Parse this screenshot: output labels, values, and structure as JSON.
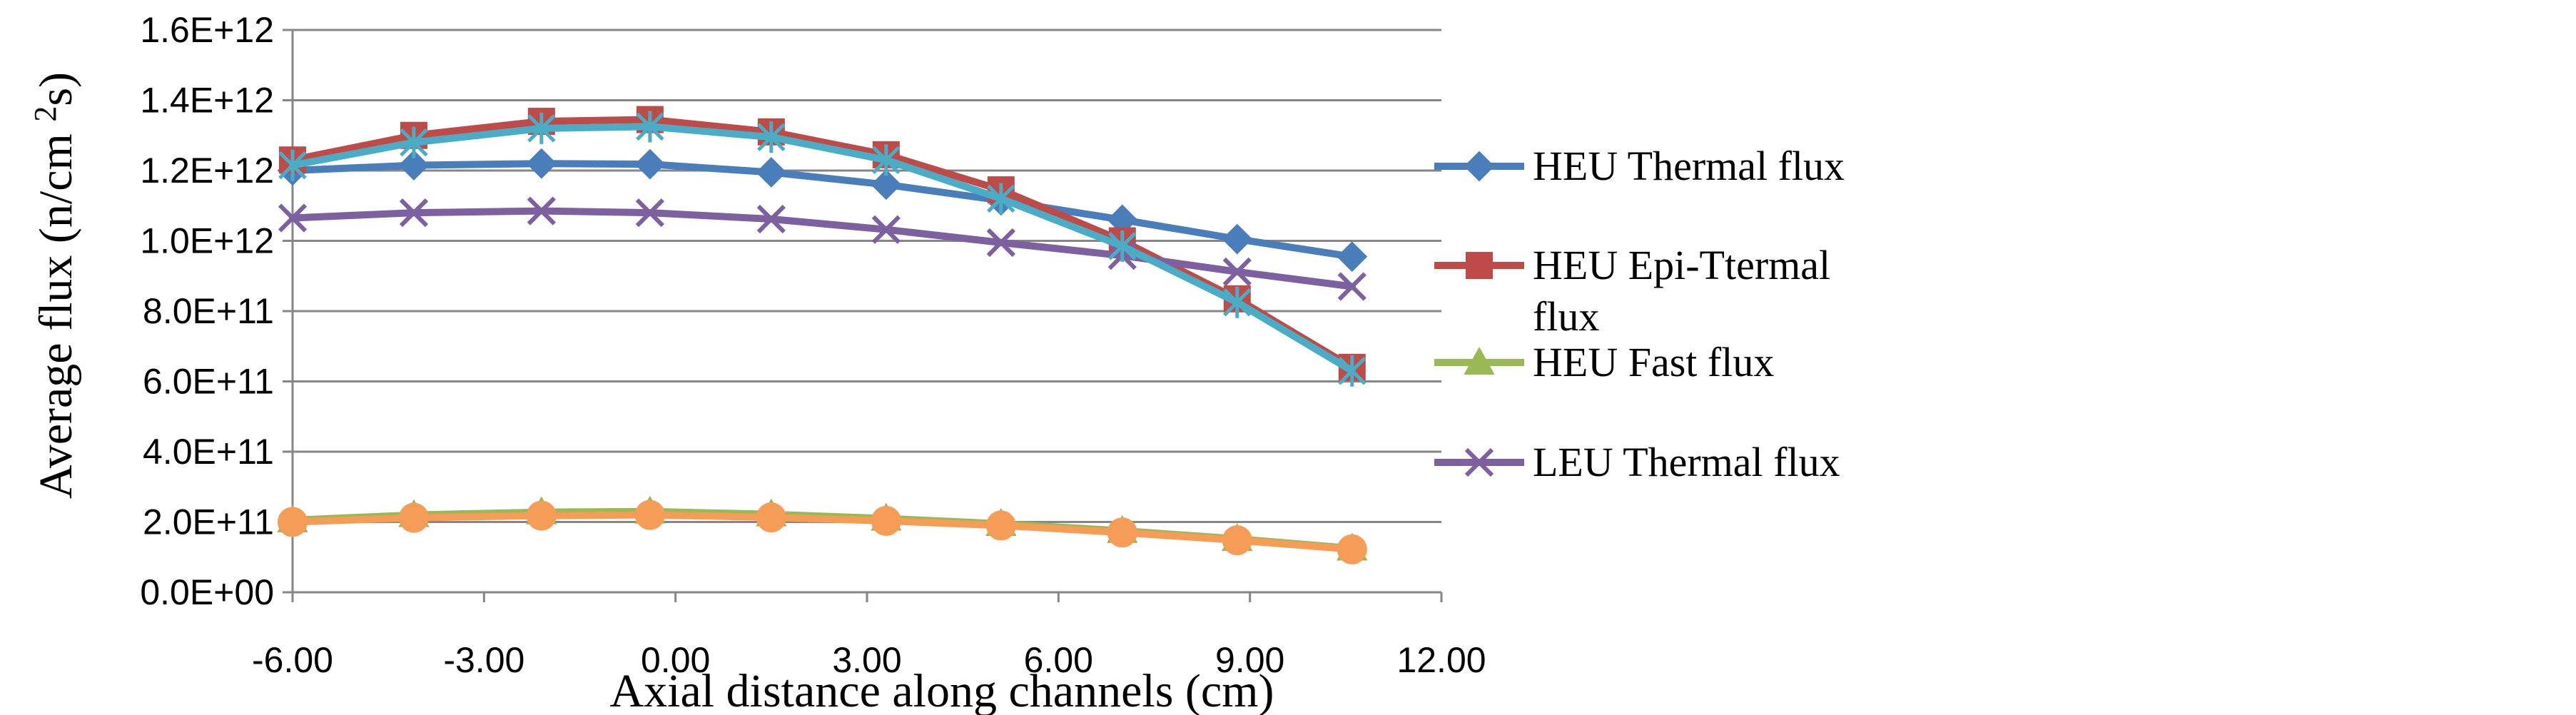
{
  "chart_data": {
    "type": "line",
    "xlabel": "Axial distance along channels (cm)",
    "ylabel_main": "Average  flux (n/cm ",
    "ylabel_sup": "2",
    "ylabel_tail": "s)",
    "xlim": [
      -6,
      12
    ],
    "ylim": [
      0,
      1600000000000
    ],
    "x_ticks": [
      -6,
      -3,
      0,
      3,
      6,
      9,
      12
    ],
    "x_tick_labels": [
      "-6.00",
      "-3.00",
      "0.00",
      "3.00",
      "6.00",
      "9.00",
      "12.00"
    ],
    "y_ticks": [
      0,
      200000000000,
      400000000000,
      600000000000,
      800000000000,
      1000000000000,
      1200000000000,
      1400000000000,
      1600000000000
    ],
    "y_tick_labels": [
      "0.0E+00",
      "2.0E+11",
      "4.0E+11",
      "6.0E+11",
      "8.0E+11",
      "1.0E+12",
      "1.2E+12",
      "1.4E+12",
      "1.6E+12"
    ],
    "grid": "horizontal",
    "legend_position": "right",
    "x": [
      -6.0,
      -4.1,
      -2.1,
      -0.4,
      1.5,
      3.3,
      5.1,
      7.0,
      8.8,
      10.6
    ],
    "series": [
      {
        "name": "HEU Thermal flux",
        "color": "#4a7ebb",
        "marker": "diamond",
        "values": [
          1200000000000,
          1215000000000,
          1220000000000,
          1218000000000,
          1195000000000,
          1160000000000,
          1115000000000,
          1060000000000,
          1005000000000,
          955000000000
        ]
      },
      {
        "name": "HEU Epi-Ttermal flux",
        "legend_lines": [
          "HEU Epi-Ttermal",
          "flux"
        ],
        "color": "#be4b48",
        "marker": "square",
        "values": [
          1230000000000,
          1300000000000,
          1340000000000,
          1345000000000,
          1310000000000,
          1245000000000,
          1145000000000,
          1000000000000,
          835000000000,
          640000000000
        ]
      },
      {
        "name": "HEU Fast flux",
        "color": "#98b954",
        "marker": "triangle",
        "values": [
          205000000000,
          220000000000,
          228000000000,
          230000000000,
          222000000000,
          210000000000,
          195000000000,
          175000000000,
          152000000000,
          125000000000
        ]
      },
      {
        "name": "LEU Thermal flux",
        "color": "#7d60a0",
        "marker": "x",
        "values": [
          1065000000000,
          1080000000000,
          1085000000000,
          1080000000000,
          1062000000000,
          1032000000000,
          995000000000,
          958000000000,
          912000000000,
          870000000000
        ]
      },
      {
        "color": "#4bacc6",
        "marker": "star",
        "values": [
          1215000000000,
          1280000000000,
          1320000000000,
          1325000000000,
          1295000000000,
          1230000000000,
          1120000000000,
          985000000000,
          825000000000,
          630000000000
        ]
      },
      {
        "color": "#f59d56",
        "marker": "circle",
        "values": [
          200000000000,
          212000000000,
          218000000000,
          220000000000,
          213000000000,
          203000000000,
          190000000000,
          170000000000,
          148000000000,
          122000000000
        ]
      }
    ]
  }
}
